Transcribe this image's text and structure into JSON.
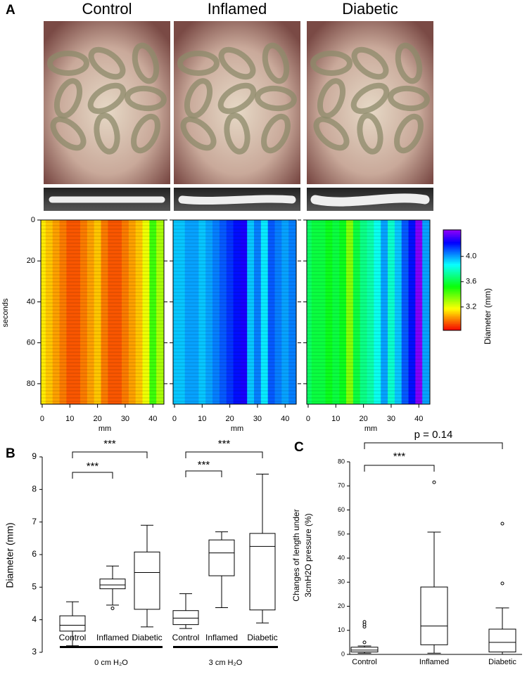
{
  "chart_data": [
    {
      "type": "heatmap",
      "panel_label": "A",
      "x": [
        0,
        2.5,
        5,
        7.5,
        10,
        12.5,
        15,
        17.5,
        20,
        22.5,
        25,
        27.5,
        30,
        32.5,
        35,
        37.5,
        40,
        42.5
      ],
      "series": [
        {
          "name": "Control",
          "values": [
            3.15,
            3.1,
            3.05,
            3.0,
            2.95,
            2.95,
            3.0,
            3.05,
            3.1,
            3.0,
            2.95,
            2.95,
            3.0,
            3.05,
            3.1,
            3.2,
            3.45,
            3.3
          ]
        },
        {
          "name": "Inflamed",
          "values": [
            3.95,
            3.95,
            4.0,
            4.0,
            3.95,
            4.0,
            4.05,
            4.1,
            4.15,
            4.2,
            4.25,
            3.95,
            4.05,
            3.9,
            4.1,
            4.05,
            4.0,
            4.05
          ]
        },
        {
          "name": "Diabetic",
          "values": [
            3.65,
            3.6,
            3.6,
            3.55,
            3.6,
            3.55,
            3.35,
            3.6,
            3.7,
            3.75,
            3.85,
            4.0,
            3.8,
            3.95,
            4.1,
            4.2,
            4.4,
            4.0
          ]
        }
      ],
      "xlabel": "mm",
      "ylabel": "seconds",
      "xlim": [
        -0.5,
        44
      ],
      "xticks": [
        0,
        10,
        20,
        30,
        40
      ],
      "ylim": [
        0,
        90
      ],
      "yticks": [
        0,
        20,
        40,
        60,
        80
      ],
      "colorbar": {
        "label": "Diameter (mm)",
        "clim": [
          2.83,
          4.42
        ],
        "ticks": [
          {
            "value": 4,
            "label": "4.0"
          },
          3.6,
          3.2
        ]
      }
    },
    {
      "type": "box",
      "panel_label": "B",
      "ylabel": "Diameter (mm)",
      "ylim": [
        3,
        9
      ],
      "yticks": [
        3,
        4,
        5,
        6,
        7,
        8,
        9
      ],
      "categories": [
        "Control",
        "Inflamed",
        "Diabetic",
        "Control",
        "Inflamed",
        "Diabetic"
      ],
      "groups": [
        "0 cm H₂O",
        "3 cm H₂O"
      ],
      "significance": [
        "***",
        "***",
        "***",
        "***"
      ],
      "boxes": [
        {
          "min": 3.2,
          "q1": 3.65,
          "median": 3.83,
          "q3": 4.12,
          "max": 4.55,
          "outliers": []
        },
        {
          "min": 4.45,
          "q1": 4.95,
          "median": 5.07,
          "q3": 5.25,
          "max": 5.65,
          "outliers": [
            4.35
          ]
        },
        {
          "min": 3.78,
          "q1": 4.32,
          "median": 5.45,
          "q3": 6.08,
          "max": 6.9,
          "outliers": []
        },
        {
          "min": 3.73,
          "q1": 3.85,
          "median": 4.05,
          "q3": 4.28,
          "max": 4.8,
          "outliers": []
        },
        {
          "min": 4.37,
          "q1": 5.35,
          "median": 6.05,
          "q3": 6.45,
          "max": 6.7,
          "outliers": []
        },
        {
          "min": 3.9,
          "q1": 4.3,
          "median": 6.25,
          "q3": 6.65,
          "max": 8.47,
          "outliers": []
        }
      ]
    },
    {
      "type": "box",
      "panel_label": "C",
      "ylabel": [
        "Changes of length  under",
        "3cmH2O  pressure (%)"
      ],
      "ylim": [
        0,
        80
      ],
      "yticks": [
        0,
        10,
        20,
        30,
        40,
        50,
        60,
        70,
        80
      ],
      "categories": [
        "Control",
        "Inflamed",
        "Diabetic"
      ],
      "significance": [
        "p = 0.14",
        "***"
      ],
      "boxes": [
        {
          "min": 0.5,
          "q1": 1,
          "median": 1.8,
          "q3": 3,
          "max": 3.5,
          "outliers": [
            5,
            11.5,
            12.5,
            13.5
          ]
        },
        {
          "min": 0.5,
          "q1": 4,
          "median": 11.8,
          "q3": 28,
          "max": 50.8,
          "outliers": [
            71.5
          ]
        },
        {
          "min": 0,
          "q1": 1,
          "median": 5,
          "q3": 10.5,
          "max": 19.3,
          "outliers": [
            29.5,
            54.3
          ]
        }
      ]
    }
  ]
}
